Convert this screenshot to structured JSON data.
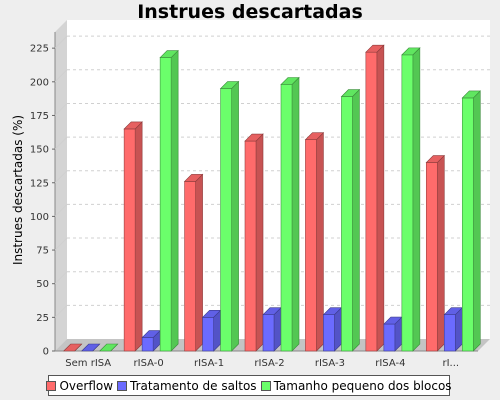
{
  "chart_data": {
    "type": "bar",
    "title": "Instrues descartadas",
    "xlabel": "",
    "ylabel": "Instrues descartadas (%)",
    "ylim": [
      0,
      237
    ],
    "yticks": [
      0,
      25,
      50,
      75,
      100,
      125,
      150,
      175,
      200,
      225
    ],
    "categories": [
      "Sem rISA",
      "rISA-0",
      "rISA-1",
      "rISA-2",
      "rISA-3",
      "rISA-4",
      "rI..."
    ],
    "series": [
      {
        "name": "Overflow",
        "color": "#ff6b6b",
        "values": [
          0,
          165,
          126,
          156,
          157,
          222,
          140
        ]
      },
      {
        "name": "Tratamento de saltos",
        "color": "#6b6bff",
        "values": [
          0,
          10,
          25,
          27,
          27,
          20,
          27
        ]
      },
      {
        "name": "Tamanho pequeno dos blocos",
        "color": "#6bff6b",
        "values": [
          0,
          218,
          195,
          198,
          189,
          220,
          188
        ]
      }
    ],
    "grid": true,
    "legend_position": "bottom"
  }
}
